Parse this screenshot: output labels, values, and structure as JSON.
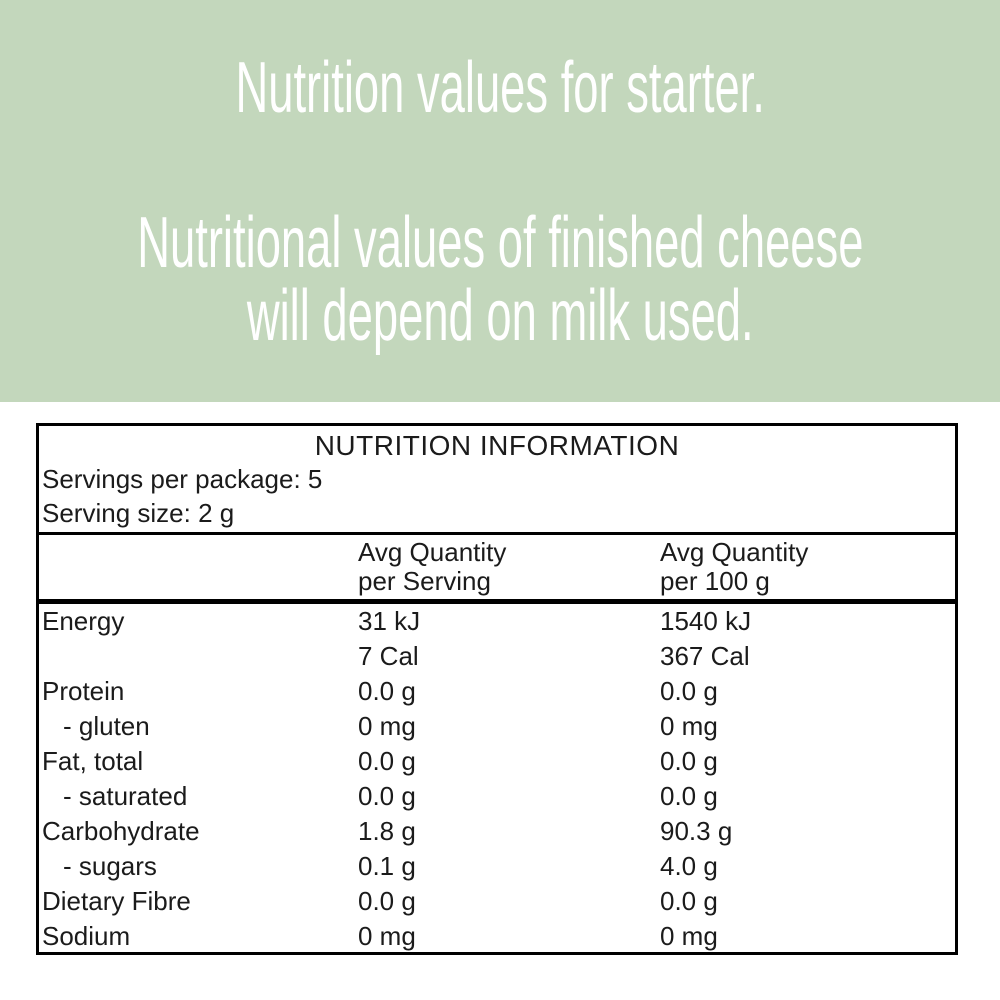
{
  "banner": {
    "bg_color": "#c3d7bc",
    "text_color": "#ffffff",
    "line1": "Nutrition values for starter.",
    "line2": "Nutritional values of finished cheese",
    "line3": "will depend on milk used."
  },
  "table": {
    "title": "NUTRITION INFORMATION",
    "servings_per_package": "Servings per package: 5",
    "serving_size": "Serving size: 2 g",
    "header_per_serving": [
      "Avg Quantity",
      "per Serving"
    ],
    "header_per_100g": [
      "Avg Quantity",
      "per 100 g"
    ],
    "rows": [
      {
        "label": "Energy",
        "indent": false,
        "per_serving": "31 kJ",
        "per_100g": "1540 kJ"
      },
      {
        "label": "",
        "indent": false,
        "per_serving": "7 Cal",
        "per_100g": "367 Cal"
      },
      {
        "label": "Protein",
        "indent": false,
        "per_serving": "0.0 g",
        "per_100g": "0.0 g"
      },
      {
        "label": "- gluten",
        "indent": true,
        "per_serving": "0 mg",
        "per_100g": "0 mg"
      },
      {
        "label": "Fat, total",
        "indent": false,
        "per_serving": "0.0 g",
        "per_100g": "0.0 g"
      },
      {
        "label": "- saturated",
        "indent": true,
        "per_serving": "0.0 g",
        "per_100g": "0.0 g"
      },
      {
        "label": "Carbohydrate",
        "indent": false,
        "per_serving": "1.8 g",
        "per_100g": "90.3 g"
      },
      {
        "label": "- sugars",
        "indent": true,
        "per_serving": "0.1 g",
        "per_100g": "4.0 g"
      },
      {
        "label": "Dietary Fibre",
        "indent": false,
        "per_serving": "0.0 g",
        "per_100g": "0.0 g"
      },
      {
        "label": "Sodium",
        "indent": false,
        "per_serving": "0 mg",
        "per_100g": "0 mg"
      }
    ]
  }
}
